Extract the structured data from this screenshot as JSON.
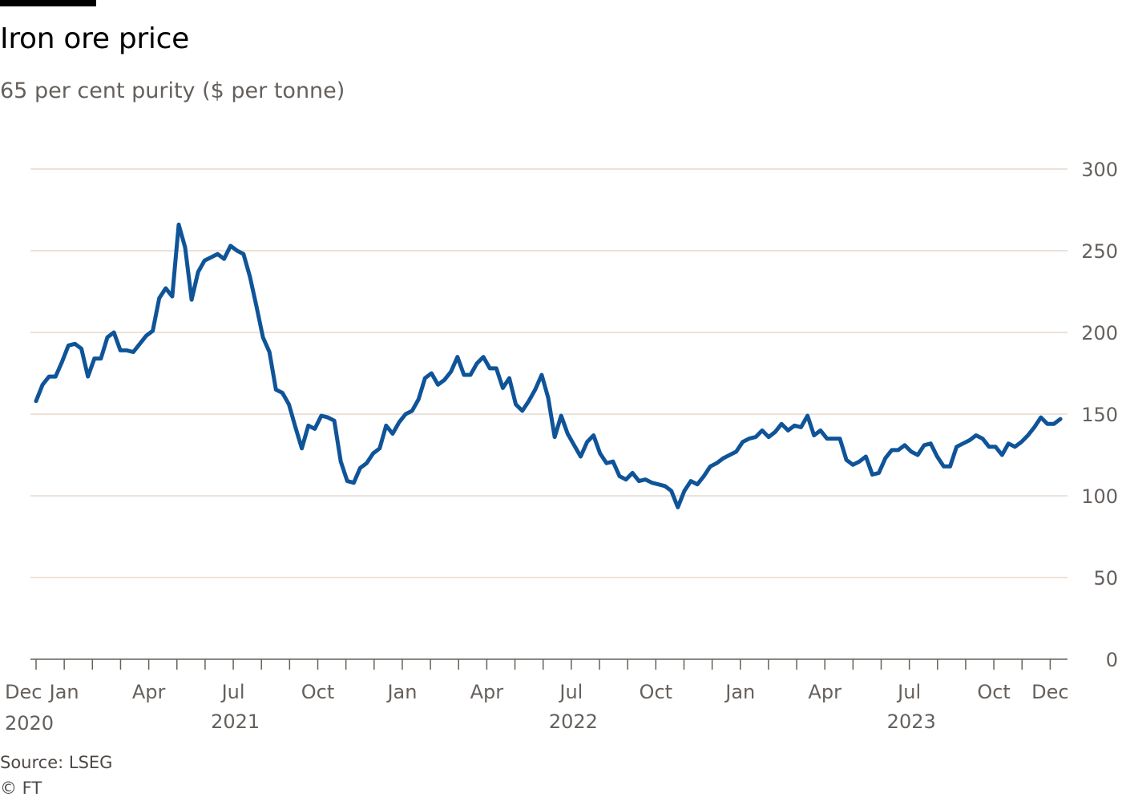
{
  "header": {
    "title": "Iron ore price",
    "subtitle": "65 per cent purity ($ per tonne)"
  },
  "footer": {
    "source": "Source: LSEG",
    "copyright": "© FT"
  },
  "colors": {
    "line": "#0f5499",
    "grid": "#e6d9ce",
    "axis": "#66605c",
    "text": "#66605c"
  },
  "chart_data": {
    "type": "line",
    "title": "Iron ore price",
    "subtitle": "65 per cent purity ($ per tonne)",
    "xlabel": "",
    "ylabel": "$ per tonne",
    "ylim": [
      0,
      300
    ],
    "y_ticks": [
      0,
      50,
      100,
      150,
      200,
      250,
      300
    ],
    "y_axis_side": "right",
    "grid": true,
    "x_unit": "months since Dec 2020",
    "x_frequency": "weekly",
    "x_start_month": 0,
    "x_end_month": 36.36,
    "x_ticks": [
      {
        "m": 0,
        "label": "Dec",
        "year": "2020"
      },
      {
        "m": 1,
        "label": "Jan"
      },
      {
        "m": 4,
        "label": "Apr"
      },
      {
        "m": 7,
        "label": "Jul"
      },
      {
        "m": 10,
        "label": "Oct"
      },
      {
        "m": 13,
        "label": "Jan"
      },
      {
        "m": 16,
        "label": "Apr"
      },
      {
        "m": 19,
        "label": "Jul"
      },
      {
        "m": 22,
        "label": "Oct"
      },
      {
        "m": 25,
        "label": "Jan"
      },
      {
        "m": 28,
        "label": "Apr"
      },
      {
        "m": 31,
        "label": "Jul"
      },
      {
        "m": 34,
        "label": "Oct"
      },
      {
        "m": 36,
        "label": "Dec"
      }
    ],
    "year_labels": [
      {
        "m": 7.5,
        "label": "2021"
      },
      {
        "m": 19.5,
        "label": "2022"
      },
      {
        "m": 31.5,
        "label": "2023"
      }
    ],
    "series": [
      {
        "name": "Iron ore price",
        "values": [
          158,
          168,
          173,
          173,
          182,
          192,
          193,
          190,
          173,
          184,
          184,
          197,
          200,
          189,
          189,
          188,
          193,
          198,
          201,
          221,
          227,
          222,
          266,
          252,
          220,
          237,
          244,
          246,
          248,
          245,
          253,
          250,
          248,
          234,
          216,
          197,
          188,
          165,
          163,
          156,
          142,
          129,
          143,
          141,
          149,
          148,
          146,
          121,
          109,
          108,
          117,
          120,
          126,
          129,
          143,
          138,
          145,
          150,
          152,
          159,
          172,
          175,
          168,
          171,
          176,
          185,
          174,
          174,
          181,
          185,
          178,
          178,
          166,
          172,
          156,
          152,
          158,
          165,
          174,
          160,
          136,
          149,
          138,
          131,
          124,
          133,
          137,
          126,
          120,
          121,
          112,
          110,
          114,
          109,
          110,
          108,
          107,
          106,
          103,
          93,
          103,
          109,
          107,
          112,
          118,
          120,
          123,
          125,
          127,
          133,
          135,
          136,
          140,
          136,
          139,
          144,
          140,
          143,
          142,
          149,
          137,
          140,
          135,
          135,
          135,
          122,
          119,
          121,
          124,
          113,
          114,
          123,
          128,
          128,
          131,
          127,
          125,
          131,
          132,
          124,
          118,
          118,
          130,
          132,
          134,
          137,
          135,
          130,
          130,
          125,
          132,
          130,
          133,
          137,
          142,
          148,
          144,
          144,
          147
        ]
      }
    ]
  }
}
